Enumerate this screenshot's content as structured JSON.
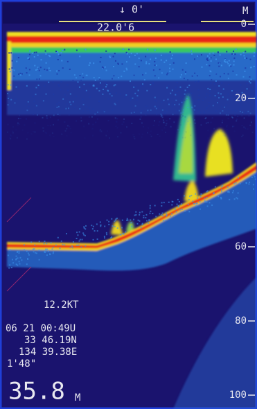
{
  "header": {
    "marker": "↓ 0'",
    "unit": "M",
    "temperature": "22.0'6"
  },
  "depth_scale": {
    "ticks": [
      0,
      20,
      60,
      80,
      100
    ]
  },
  "readout": {
    "speed": "12.2KT",
    "datetime": "06 21 00:49U",
    "latitude": "33 46.19N",
    "longitude": "134 39.38E",
    "time_offset": "1'48\"",
    "depth": "35.8",
    "depth_unit": "M"
  }
}
